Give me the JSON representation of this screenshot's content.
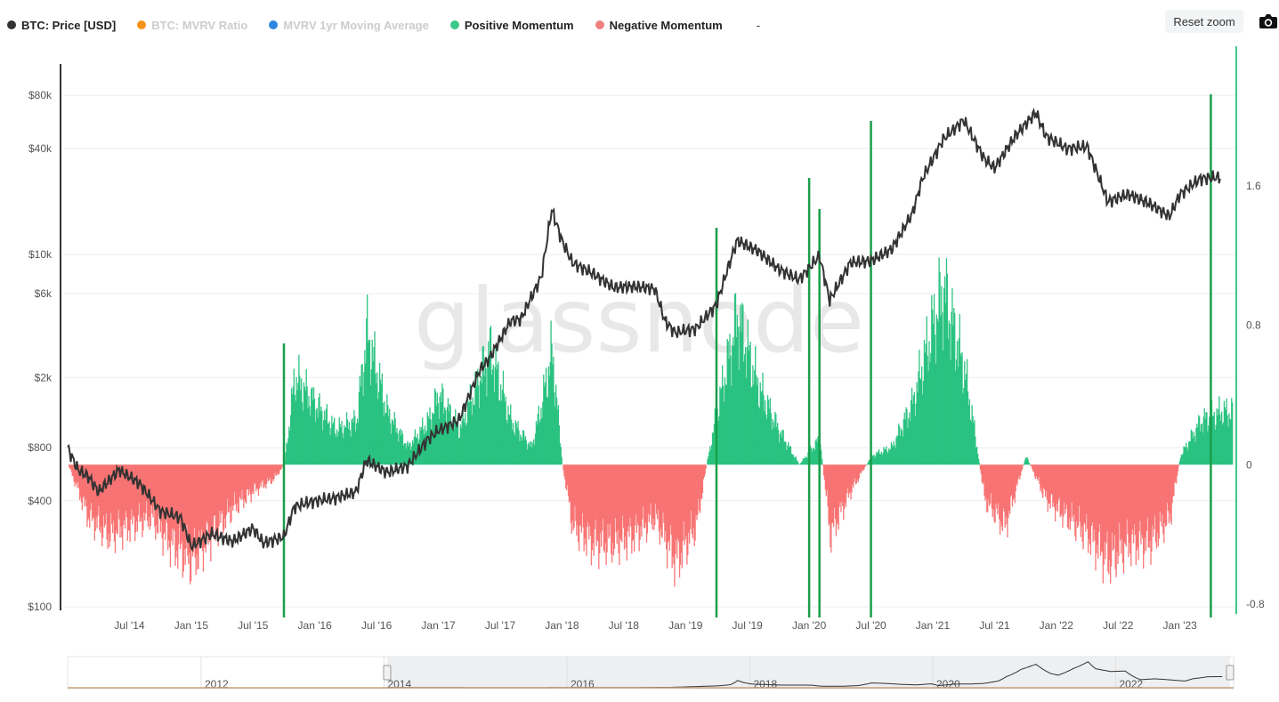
{
  "legend": {
    "items": [
      {
        "label": "BTC: Price [USD]",
        "color": "#333333",
        "enabled": true
      },
      {
        "label": "BTC: MVRV Ratio",
        "color": "#f7931a",
        "enabled": false
      },
      {
        "label": "MVRV 1yr Moving Average",
        "color": "#2e86de",
        "enabled": false
      },
      {
        "label": "Positive Momentum",
        "color": "#3cc88a",
        "enabled": true
      },
      {
        "label": "Negative Momentum",
        "color": "#f08080",
        "enabled": true
      }
    ],
    "extra": "-"
  },
  "toolbar": {
    "reset_zoom_label": "Reset zoom",
    "camera_icon": "camera-icon"
  },
  "watermark": "glassnode",
  "chart_data": {
    "type": "area",
    "x_ticks": [
      "Jul '14",
      "Jan '15",
      "Jul '15",
      "Jan '16",
      "Jul '16",
      "Jan '17",
      "Jul '17",
      "Jan '18",
      "Jul '18",
      "Jan '19",
      "Jul '19",
      "Jan '20",
      "Jul '20",
      "Jan '21",
      "Jul '21",
      "Jan '22",
      "Jul '22",
      "Jan '23"
    ],
    "y_left": {
      "scale": "log",
      "ticks": [
        "$80k",
        "$40k",
        "$10k",
        "$6k",
        "$2k",
        "$800",
        "$400",
        "$100"
      ],
      "range": [
        100,
        100000
      ]
    },
    "y_right": {
      "ticks": [
        "1.6",
        "0.8",
        "0",
        "-0.8"
      ],
      "range": [
        -0.8,
        2.4
      ]
    },
    "price_series": {
      "name": "BTC: Price [USD]",
      "points": [
        [
          "2014-01",
          800
        ],
        [
          "2014-02",
          600
        ],
        [
          "2014-03",
          550
        ],
        [
          "2014-04",
          450
        ],
        [
          "2014-06",
          600
        ],
        [
          "2014-08",
          500
        ],
        [
          "2014-10",
          350
        ],
        [
          "2014-12",
          320
        ],
        [
          "2015-01",
          220
        ],
        [
          "2015-03",
          260
        ],
        [
          "2015-05",
          235
        ],
        [
          "2015-07",
          280
        ],
        [
          "2015-08",
          230
        ],
        [
          "2015-10",
          250
        ],
        [
          "2015-11",
          370
        ],
        [
          "2016-01",
          400
        ],
        [
          "2016-03",
          415
        ],
        [
          "2016-05",
          450
        ],
        [
          "2016-06",
          680
        ],
        [
          "2016-08",
          580
        ],
        [
          "2016-10",
          630
        ],
        [
          "2016-12",
          900
        ],
        [
          "2017-01",
          1000
        ],
        [
          "2017-03",
          1150
        ],
        [
          "2017-05",
          2200
        ],
        [
          "2017-06",
          2600
        ],
        [
          "2017-08",
          4200
        ],
        [
          "2017-09",
          4300
        ],
        [
          "2017-11",
          7500
        ],
        [
          "2017-12",
          18000
        ],
        [
          "2018-01",
          12000
        ],
        [
          "2018-02",
          9000
        ],
        [
          "2018-04",
          7800
        ],
        [
          "2018-06",
          6500
        ],
        [
          "2018-08",
          6600
        ],
        [
          "2018-10",
          6400
        ],
        [
          "2018-11",
          4200
        ],
        [
          "2018-12",
          3600
        ],
        [
          "2019-02",
          3800
        ],
        [
          "2019-04",
          5200
        ],
        [
          "2019-05",
          8000
        ],
        [
          "2019-06",
          12000
        ],
        [
          "2019-08",
          10500
        ],
        [
          "2019-10",
          8300
        ],
        [
          "2019-12",
          7200
        ],
        [
          "2020-02",
          9800
        ],
        [
          "2020-03",
          5500
        ],
        [
          "2020-05",
          9000
        ],
        [
          "2020-07",
          9200
        ],
        [
          "2020-09",
          10700
        ],
        [
          "2020-11",
          17000
        ],
        [
          "2020-12",
          27000
        ],
        [
          "2021-02",
          45000
        ],
        [
          "2021-04",
          58000
        ],
        [
          "2021-06",
          35000
        ],
        [
          "2021-07",
          31000
        ],
        [
          "2021-09",
          47000
        ],
        [
          "2021-11",
          64000
        ],
        [
          "2021-12",
          47000
        ],
        [
          "2022-02",
          40000
        ],
        [
          "2022-04",
          41000
        ],
        [
          "2022-06",
          20000
        ],
        [
          "2022-08",
          22000
        ],
        [
          "2022-10",
          19500
        ],
        [
          "2022-12",
          16500
        ],
        [
          "2023-01",
          22000
        ],
        [
          "2023-03",
          27000
        ],
        [
          "2023-05",
          27500
        ]
      ]
    },
    "momentum_series": {
      "name": "Momentum",
      "points": [
        [
          "2014-01",
          0.0
        ],
        [
          "2014-03",
          -0.3
        ],
        [
          "2014-05",
          -0.4
        ],
        [
          "2014-07",
          -0.35
        ],
        [
          "2014-09",
          -0.3
        ],
        [
          "2014-11",
          -0.45
        ],
        [
          "2015-01",
          -0.55
        ],
        [
          "2015-03",
          -0.4
        ],
        [
          "2015-05",
          -0.25
        ],
        [
          "2015-07",
          -0.15
        ],
        [
          "2015-09",
          -0.08
        ],
        [
          "2015-10",
          0.0
        ],
        [
          "2015-11",
          0.5
        ],
        [
          "2016-01",
          0.35
        ],
        [
          "2016-03",
          0.2
        ],
        [
          "2016-05",
          0.25
        ],
        [
          "2016-06",
          0.75
        ],
        [
          "2016-08",
          0.3
        ],
        [
          "2016-10",
          0.1
        ],
        [
          "2016-12",
          0.25
        ],
        [
          "2017-01",
          0.4
        ],
        [
          "2017-03",
          0.2
        ],
        [
          "2017-05",
          0.5
        ],
        [
          "2017-06",
          0.65
        ],
        [
          "2017-08",
          0.25
        ],
        [
          "2017-10",
          0.1
        ],
        [
          "2017-11",
          0.35
        ],
        [
          "2017-12",
          0.65
        ],
        [
          "2018-01",
          0.0
        ],
        [
          "2018-02",
          -0.35
        ],
        [
          "2018-04",
          -0.45
        ],
        [
          "2018-06",
          -0.45
        ],
        [
          "2018-08",
          -0.4
        ],
        [
          "2018-10",
          -0.3
        ],
        [
          "2018-12",
          -0.55
        ],
        [
          "2019-02",
          -0.35
        ],
        [
          "2019-03",
          0.0
        ],
        [
          "2019-04",
          0.3
        ],
        [
          "2019-06",
          0.85
        ],
        [
          "2019-08",
          0.45
        ],
        [
          "2019-10",
          0.2
        ],
        [
          "2019-12",
          0.0
        ],
        [
          "2020-02",
          0.15
        ],
        [
          "2020-03",
          -0.4
        ],
        [
          "2020-05",
          -0.15
        ],
        [
          "2020-07",
          0.05
        ],
        [
          "2020-09",
          0.1
        ],
        [
          "2020-11",
          0.35
        ],
        [
          "2021-01",
          0.8
        ],
        [
          "2021-02",
          1.0
        ],
        [
          "2021-04",
          0.55
        ],
        [
          "2021-05",
          0.2
        ],
        [
          "2021-06",
          -0.2
        ],
        [
          "2021-08",
          -0.35
        ],
        [
          "2021-10",
          0.05
        ],
        [
          "2021-12",
          -0.2
        ],
        [
          "2022-02",
          -0.3
        ],
        [
          "2022-04",
          -0.4
        ],
        [
          "2022-06",
          -0.55
        ],
        [
          "2022-08",
          -0.45
        ],
        [
          "2022-10",
          -0.45
        ],
        [
          "2022-12",
          -0.3
        ],
        [
          "2023-01",
          0.05
        ],
        [
          "2023-03",
          0.25
        ],
        [
          "2023-05",
          0.3
        ]
      ]
    },
    "signal_lines_dates": [
      "2015-10",
      "2019-04",
      "2020-01",
      "2020-02",
      "2020-07",
      "2023-04"
    ]
  }
}
